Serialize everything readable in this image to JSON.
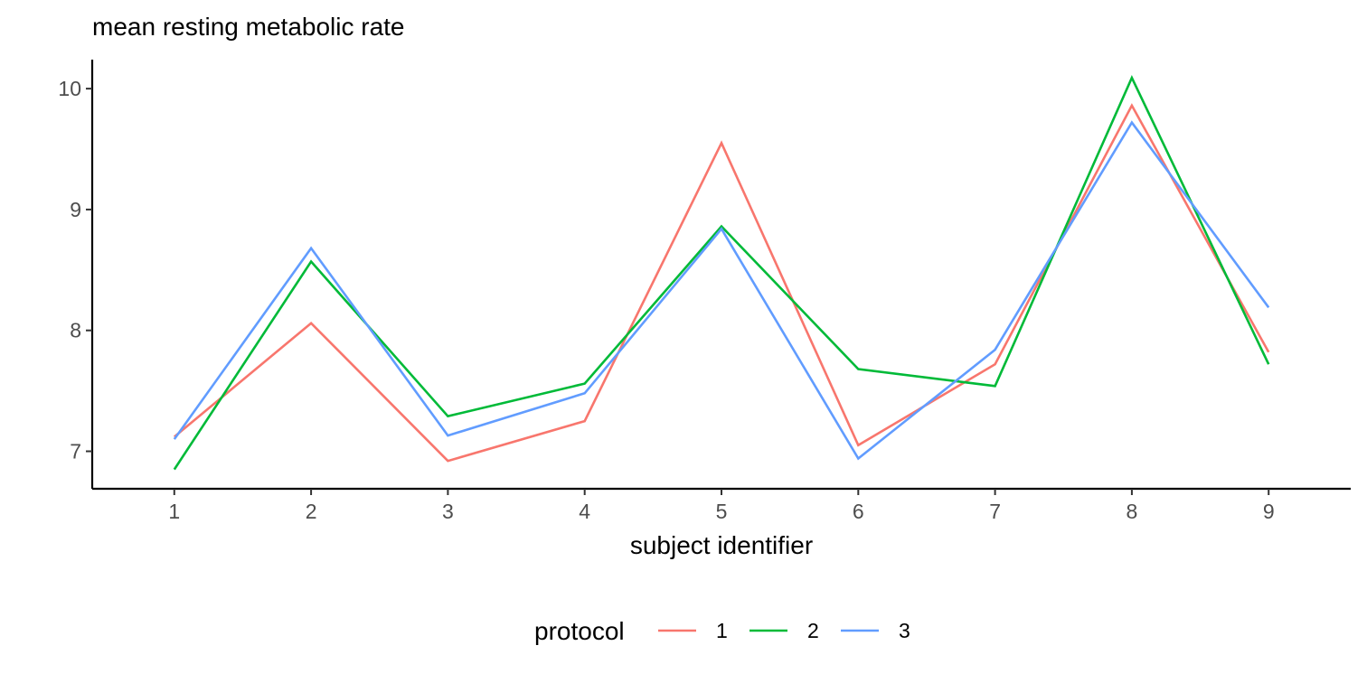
{
  "chart_data": {
    "type": "line",
    "title": "mean resting metabolic rate",
    "xlabel": "subject identifier",
    "ylabel": "",
    "x": [
      1,
      2,
      3,
      4,
      5,
      6,
      7,
      8,
      9
    ],
    "x_tick_labels": [
      "1",
      "2",
      "3",
      "4",
      "5",
      "6",
      "7",
      "8",
      "9"
    ],
    "y_ticks": [
      7,
      8,
      9,
      10
    ],
    "y_tick_labels": [
      "7",
      "8",
      "9",
      "10"
    ],
    "xlim": [
      0.4,
      9.6
    ],
    "ylim": [
      6.69,
      10.24
    ],
    "grid": false,
    "legend": {
      "title": "protocol",
      "position": "bottom"
    },
    "series": [
      {
        "name": "1",
        "color": "#F8766D",
        "values": [
          7.12,
          8.06,
          6.92,
          7.25,
          9.55,
          7.05,
          7.72,
          9.86,
          7.82
        ]
      },
      {
        "name": "2",
        "color": "#00BA38",
        "values": [
          6.85,
          8.57,
          7.29,
          7.56,
          8.86,
          7.68,
          7.54,
          10.09,
          7.72
        ]
      },
      {
        "name": "3",
        "color": "#619CFF",
        "values": [
          7.1,
          8.68,
          7.13,
          7.48,
          8.84,
          6.94,
          7.84,
          9.72,
          8.19
        ]
      }
    ]
  }
}
